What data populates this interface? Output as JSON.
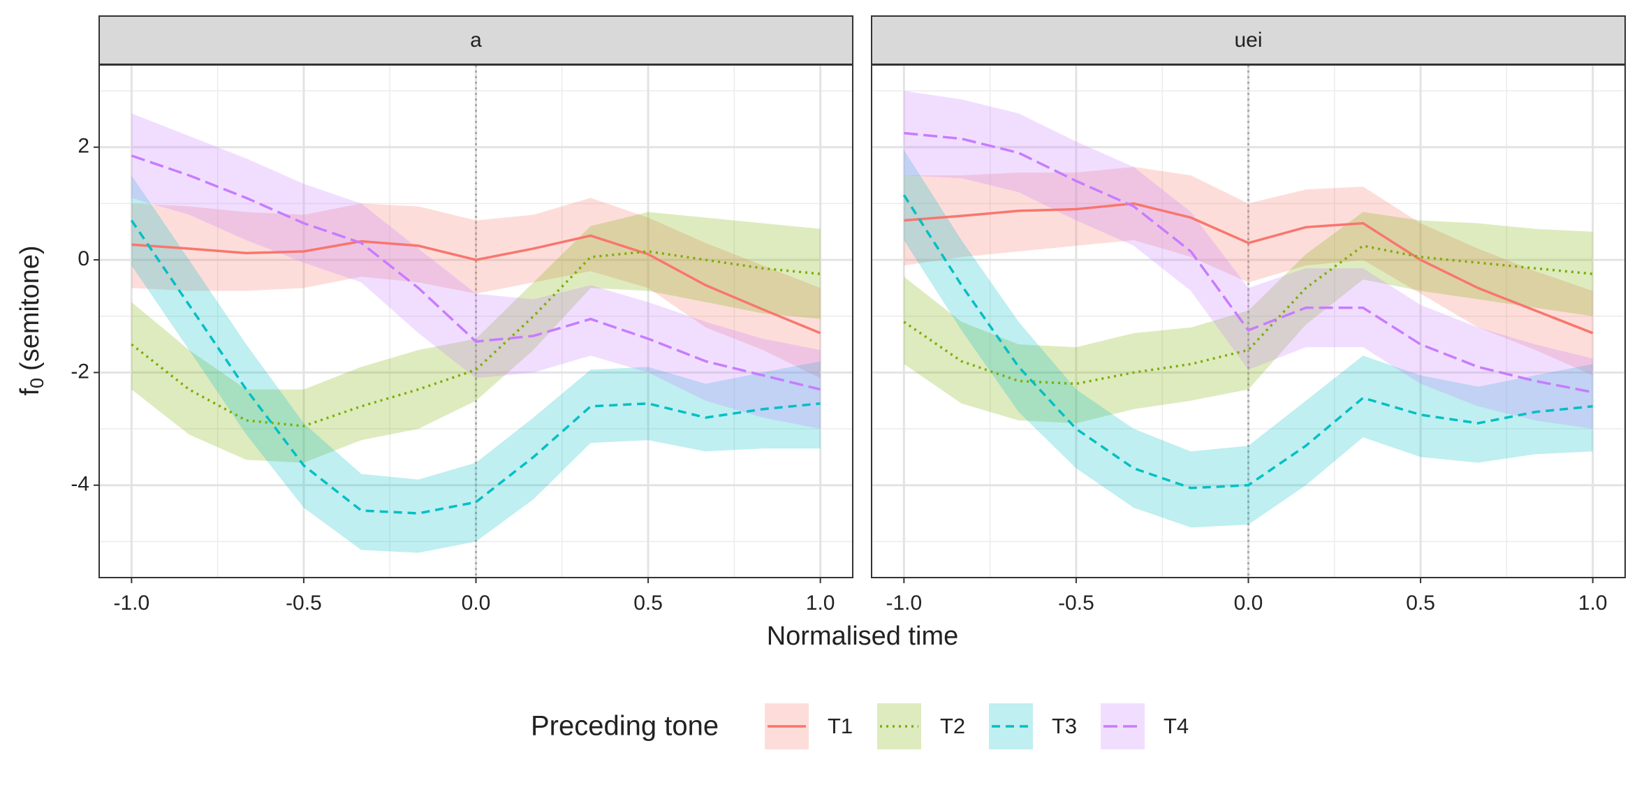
{
  "chart_data": {
    "type": "line",
    "xlabel": "Normalised time",
    "ylabel": {
      "main": "f",
      "sub": "0",
      "rest": "(semitone)"
    },
    "legend_title": "Preceding tone",
    "legend_position": "bottom",
    "grid": true,
    "vline": 0,
    "xlim": [
      -1.094,
      1.094
    ],
    "ylim": [
      -5.64,
      3.46
    ],
    "xticks": [
      {
        "value": -1,
        "label": "-1.0"
      },
      {
        "value": -0.5,
        "label": "-0.5"
      },
      {
        "value": 0,
        "label": "0.0"
      },
      {
        "value": 0.5,
        "label": "0.5"
      },
      {
        "value": 1,
        "label": "1.0"
      }
    ],
    "yticks": [
      -4,
      -2,
      0,
      2
    ],
    "xminor": [
      -0.75,
      -0.25,
      0.25,
      0.75
    ],
    "yminor": [
      -5,
      -3,
      -1,
      1,
      3
    ],
    "x": [
      -1,
      -0.833,
      -0.667,
      -0.5,
      -0.333,
      -0.167,
      0,
      0.167,
      0.333,
      0.5,
      0.667,
      0.833,
      1
    ],
    "panels": [
      {
        "title": "a",
        "series": [
          {
            "name": "T1",
            "color": "#F8766D",
            "linetype": "solid",
            "values": [
              0.27,
              0.2,
              0.12,
              0.15,
              0.33,
              0.25,
              0.0,
              0.2,
              0.43,
              0.1,
              -0.45,
              -0.88,
              -1.3
            ],
            "upper": [
              1.0,
              0.95,
              0.85,
              0.8,
              1.0,
              0.95,
              0.7,
              0.8,
              1.1,
              0.75,
              0.3,
              -0.1,
              -0.5
            ],
            "lower": [
              -0.5,
              -0.55,
              -0.55,
              -0.5,
              -0.3,
              -0.4,
              -0.6,
              -0.4,
              -0.2,
              -0.5,
              -1.2,
              -1.6,
              -2.1
            ]
          },
          {
            "name": "T2",
            "color": "#7CAE00",
            "linetype": "dotted",
            "values": [
              -1.5,
              -2.3,
              -2.85,
              -2.95,
              -2.6,
              -2.3,
              -1.95,
              -1.0,
              0.05,
              0.15,
              0.0,
              -0.15,
              -0.25
            ],
            "upper": [
              -0.75,
              -1.6,
              -2.3,
              -2.3,
              -1.9,
              -1.6,
              -1.4,
              -0.4,
              0.6,
              0.85,
              0.75,
              0.65,
              0.55
            ],
            "lower": [
              -2.3,
              -3.1,
              -3.55,
              -3.6,
              -3.2,
              -3.0,
              -2.5,
              -1.6,
              -0.5,
              -0.55,
              -0.75,
              -0.95,
              -1.05
            ]
          },
          {
            "name": "T3",
            "color": "#00BFC4",
            "linetype": "dashed",
            "values": [
              0.7,
              -0.8,
              -2.3,
              -3.65,
              -4.45,
              -4.5,
              -4.3,
              -3.5,
              -2.6,
              -2.55,
              -2.8,
              -2.65,
              -2.55
            ],
            "upper": [
              1.5,
              0.0,
              -1.5,
              -2.9,
              -3.8,
              -3.9,
              -3.6,
              -2.8,
              -1.95,
              -1.9,
              -2.2,
              -2.0,
              -1.8
            ],
            "lower": [
              -0.1,
              -1.6,
              -3.1,
              -4.4,
              -5.15,
              -5.2,
              -5.0,
              -4.25,
              -3.25,
              -3.2,
              -3.4,
              -3.35,
              -3.35
            ]
          },
          {
            "name": "T4",
            "color": "#C77CFF",
            "linetype": "longdash",
            "values": [
              1.85,
              1.5,
              1.1,
              0.65,
              0.3,
              -0.5,
              -1.45,
              -1.35,
              -1.05,
              -1.4,
              -1.8,
              -2.05,
              -2.3
            ],
            "upper": [
              2.6,
              2.2,
              1.8,
              1.35,
              1.0,
              0.2,
              -0.6,
              -0.7,
              -0.45,
              -0.75,
              -1.1,
              -1.4,
              -1.6
            ],
            "lower": [
              1.1,
              0.8,
              0.35,
              -0.05,
              -0.4,
              -1.3,
              -2.1,
              -2.0,
              -1.7,
              -2.0,
              -2.5,
              -2.8,
              -3.0
            ]
          }
        ]
      },
      {
        "title": "uei",
        "series": [
          {
            "name": "T1",
            "color": "#F8766D",
            "linetype": "solid",
            "values": [
              0.7,
              0.78,
              0.87,
              0.9,
              1.0,
              0.75,
              0.3,
              0.58,
              0.65,
              0.0,
              -0.5,
              -0.9,
              -1.3
            ],
            "upper": [
              1.5,
              1.5,
              1.55,
              1.55,
              1.65,
              1.5,
              1.0,
              1.25,
              1.3,
              0.65,
              0.2,
              -0.2,
              -0.55
            ],
            "lower": [
              -0.1,
              0.05,
              0.15,
              0.25,
              0.35,
              0.05,
              -0.4,
              -0.1,
              0.0,
              -0.6,
              -1.2,
              -1.6,
              -2.05
            ]
          },
          {
            "name": "T2",
            "color": "#7CAE00",
            "linetype": "dotted",
            "values": [
              -1.1,
              -1.8,
              -2.15,
              -2.2,
              -2.0,
              -1.85,
              -1.6,
              -0.5,
              0.25,
              0.05,
              -0.05,
              -0.15,
              -0.25
            ],
            "upper": [
              -0.3,
              -1.1,
              -1.5,
              -1.55,
              -1.3,
              -1.2,
              -0.9,
              0.1,
              0.85,
              0.7,
              0.65,
              0.55,
              0.5
            ],
            "lower": [
              -1.85,
              -2.55,
              -2.85,
              -2.9,
              -2.65,
              -2.5,
              -2.3,
              -1.15,
              -0.35,
              -0.55,
              -0.7,
              -0.85,
              -1.0
            ]
          },
          {
            "name": "T3",
            "color": "#00BFC4",
            "linetype": "dashed",
            "values": [
              1.15,
              -0.45,
              -1.9,
              -3.0,
              -3.7,
              -4.05,
              -4.0,
              -3.3,
              -2.45,
              -2.75,
              -2.9,
              -2.7,
              -2.6
            ],
            "upper": [
              1.95,
              0.35,
              -1.1,
              -2.3,
              -3.0,
              -3.4,
              -3.3,
              -2.5,
              -1.7,
              -2.05,
              -2.25,
              -2.05,
              -1.85
            ],
            "lower": [
              0.35,
              -1.25,
              -2.7,
              -3.7,
              -4.4,
              -4.75,
              -4.7,
              -4.0,
              -3.15,
              -3.5,
              -3.6,
              -3.45,
              -3.4
            ]
          },
          {
            "name": "T4",
            "color": "#C77CFF",
            "linetype": "longdash",
            "values": [
              2.25,
              2.15,
              1.9,
              1.4,
              0.95,
              0.15,
              -1.25,
              -0.85,
              -0.85,
              -1.5,
              -1.9,
              -2.15,
              -2.35
            ],
            "upper": [
              3.0,
              2.85,
              2.6,
              2.1,
              1.65,
              0.85,
              -0.5,
              -0.15,
              -0.15,
              -0.8,
              -1.2,
              -1.5,
              -1.75
            ],
            "lower": [
              1.5,
              1.45,
              1.2,
              0.7,
              0.25,
              -0.55,
              -1.95,
              -1.55,
              -1.55,
              -2.2,
              -2.6,
              -2.85,
              -3.0
            ]
          }
        ]
      }
    ]
  }
}
